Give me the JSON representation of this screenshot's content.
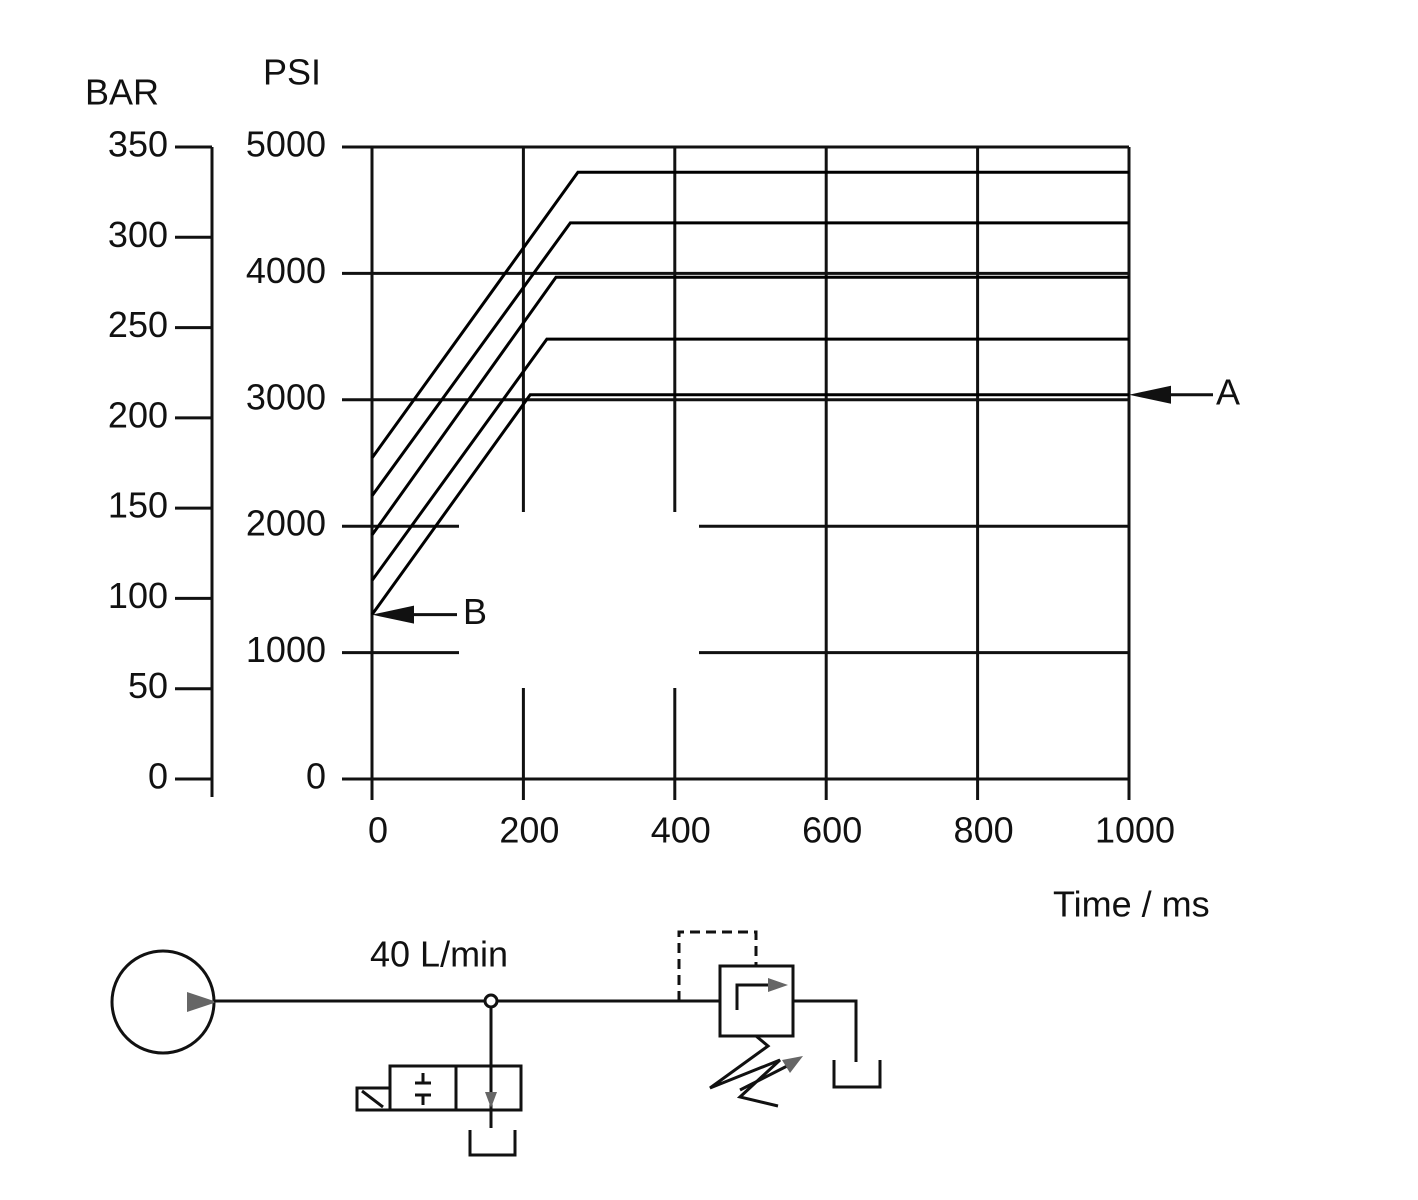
{
  "chart_data": {
    "type": "line",
    "ylabel": "PSI",
    "y2label": "BAR",
    "xlabel": "Time / ms",
    "xlim": [
      0,
      1000
    ],
    "xticks": [
      0,
      200,
      400,
      600,
      800,
      1000
    ],
    "ylim": [
      0,
      5000
    ],
    "yticks": [
      0,
      1000,
      2000,
      3000,
      4000,
      5000
    ],
    "y2lim": [
      0,
      350
    ],
    "y2ticks": [
      0,
      50,
      100,
      150,
      200,
      250,
      300,
      350
    ],
    "grid": true,
    "series": [
      {
        "color": "#000000",
        "x": [
          0,
          272,
          1000
        ],
        "values": [
          2540,
          4800,
          4800
        ]
      },
      {
        "color": "#000000",
        "x": [
          0,
          262,
          1000
        ],
        "values": [
          2240,
          4400,
          4400
        ]
      },
      {
        "color": "#000000",
        "x": [
          0,
          243,
          1000
        ],
        "values": [
          1930,
          3970,
          3970
        ]
      },
      {
        "color": "#000000",
        "x": [
          0,
          231,
          1000
        ],
        "values": [
          1570,
          3480,
          3480
        ]
      },
      {
        "color": "#000000",
        "x": [
          0,
          209,
          1000
        ],
        "values": [
          1300,
          3040,
          3040
        ]
      }
    ],
    "annotations": [
      "A",
      "B",
      "40 L/min"
    ]
  }
}
